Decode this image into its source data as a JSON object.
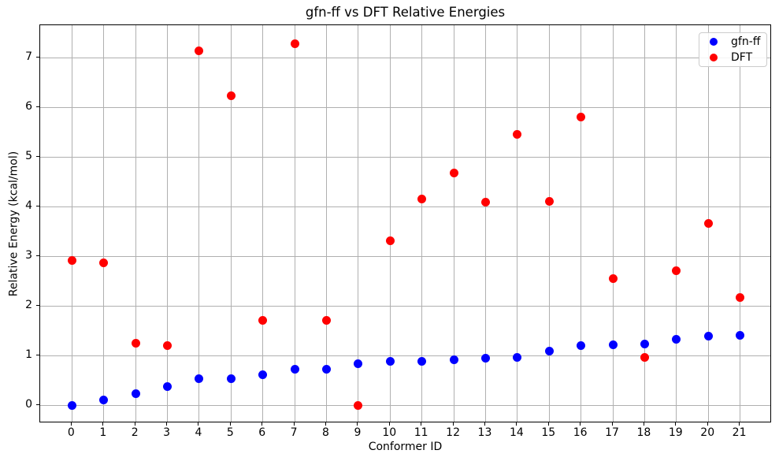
{
  "chart_data": {
    "type": "scatter",
    "title": "gfn-ff vs DFT Relative Energies",
    "xlabel": "Conformer ID",
    "ylabel": "Relative Energy (kcal/mol)",
    "categories": [
      0,
      1,
      2,
      3,
      4,
      5,
      6,
      7,
      8,
      9,
      10,
      11,
      12,
      13,
      14,
      15,
      16,
      17,
      18,
      19,
      20,
      21
    ],
    "series": [
      {
        "name": "gfn-ff",
        "color": "#0000ff",
        "values": [
          0.0,
          0.12,
          0.25,
          0.38,
          0.54,
          0.55,
          0.63,
          0.73,
          0.74,
          0.84,
          0.89,
          0.9,
          0.93,
          0.96,
          0.98,
          1.1,
          1.21,
          1.23,
          1.25,
          1.34,
          1.4,
          1.42
        ]
      },
      {
        "name": "DFT",
        "color": "#ff0000",
        "values": [
          2.92,
          2.88,
          1.26,
          1.21,
          7.14,
          6.24,
          1.72,
          7.27,
          1.71,
          0.0,
          3.32,
          4.15,
          4.68,
          4.09,
          5.45,
          4.11,
          5.8,
          2.55,
          0.98,
          2.71,
          3.67,
          2.18
        ]
      }
    ],
    "xlim": [
      -1.0,
      22.0
    ],
    "ylim": [
      -0.35,
      7.65
    ],
    "xticks": [
      0,
      1,
      2,
      3,
      4,
      5,
      6,
      7,
      8,
      9,
      10,
      11,
      12,
      13,
      14,
      15,
      16,
      17,
      18,
      19,
      20,
      21
    ],
    "yticks": [
      0,
      1,
      2,
      3,
      4,
      5,
      6,
      7
    ],
    "grid": true,
    "grid_color": "#b0b0b0",
    "background": "#ffffff",
    "legend": {
      "position": "upper right",
      "entries": [
        "gfn-ff",
        "DFT"
      ]
    }
  }
}
